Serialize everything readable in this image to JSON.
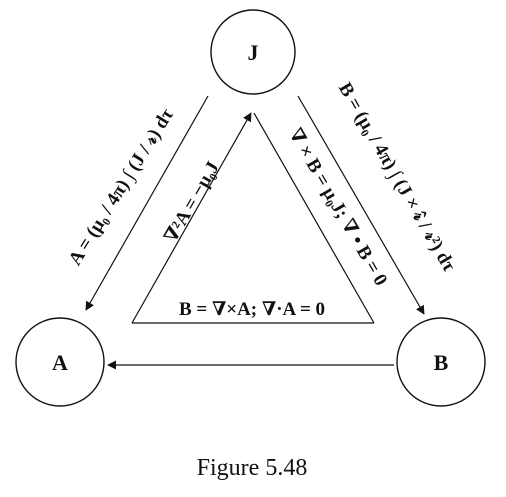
{
  "nodes": {
    "j": {
      "label": "J"
    },
    "a": {
      "label": "A"
    },
    "b": {
      "label": "B"
    }
  },
  "equations": {
    "outer_left": "A = (μ₀ / 4π) ∫ (J / 𝓇) dτ",
    "inner_left": "∇²A = −μ₀J",
    "inner_bottom": "B = ∇×A; ∇·A = 0",
    "inner_right": "∇ × B = μ₀J; ∇ • B = 0",
    "outer_right": "B = (μ₀ / 4π) ∫ (J × 𝓇̂ / 𝓇²) dτ"
  },
  "caption": "Figure 5.48",
  "colors": {
    "ink": "#111111",
    "background": "#ffffff"
  }
}
